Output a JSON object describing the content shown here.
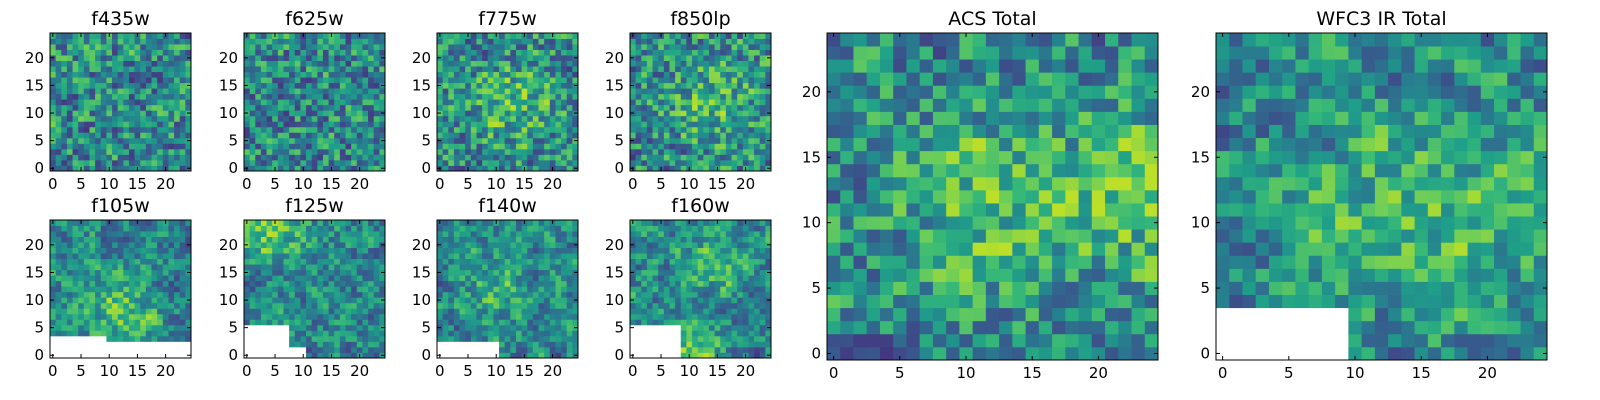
{
  "chart_data": [
    {
      "type": "heatmap",
      "title": "f435w",
      "xlim": [
        -0.5,
        24.5
      ],
      "ylim": [
        -0.5,
        24.5
      ],
      "xticks": [
        "0",
        "5",
        "10",
        "15",
        "20"
      ],
      "yticks": [
        "0",
        "5",
        "10",
        "15",
        "20"
      ],
      "mask": [],
      "seed": 11,
      "bias": [],
      "smooth": 0.8
    },
    {
      "type": "heatmap",
      "title": "f625w",
      "xlim": [
        -0.5,
        24.5
      ],
      "ylim": [
        -0.5,
        24.5
      ],
      "xticks": [
        "0",
        "5",
        "10",
        "15",
        "20"
      ],
      "yticks": [
        "0",
        "5",
        "10",
        "15",
        "20"
      ],
      "mask": [],
      "seed": 23,
      "bias": [],
      "smooth": 0.8
    },
    {
      "type": "heatmap",
      "title": "f775w",
      "xlim": [
        -0.5,
        24.5
      ],
      "ylim": [
        -0.5,
        24.5
      ],
      "xticks": [
        "0",
        "5",
        "10",
        "15",
        "20"
      ],
      "yticks": [
        "0",
        "5",
        "10",
        "15",
        "20"
      ],
      "mask": [],
      "seed": 37,
      "bias": [
        [
          13,
          12,
          5,
          0.3
        ]
      ],
      "smooth": 0.8
    },
    {
      "type": "heatmap",
      "title": "f850lp",
      "xlim": [
        -0.5,
        24.5
      ],
      "ylim": [
        -0.5,
        24.5
      ],
      "xticks": [
        "0",
        "5",
        "10",
        "15",
        "20"
      ],
      "yticks": [
        "0",
        "5",
        "10",
        "15",
        "20"
      ],
      "mask": [],
      "seed": 41,
      "bias": [
        [
          14,
          12,
          5,
          0.3
        ]
      ],
      "smooth": 0.8
    },
    {
      "type": "heatmap",
      "title": "f105w",
      "xlim": [
        -0.5,
        24.5
      ],
      "ylim": [
        -0.5,
        24.5
      ],
      "xticks": [
        "0",
        "5",
        "10",
        "15",
        "20"
      ],
      "yticks": [
        "0",
        "5",
        "10",
        "15",
        "20"
      ],
      "mask": [
        [
          0,
          3,
          0,
          9
        ],
        [
          0,
          2,
          10,
          24
        ]
      ],
      "seed": 53,
      "bias": [
        [
          12,
          8,
          4,
          0.35
        ]
      ],
      "smooth": 0.55
    },
    {
      "type": "heatmap",
      "title": "f125w",
      "xlim": [
        -0.5,
        24.5
      ],
      "ylim": [
        -0.5,
        24.5
      ],
      "xticks": [
        "0",
        "5",
        "10",
        "15",
        "20"
      ],
      "yticks": [
        "0",
        "5",
        "10",
        "15",
        "20"
      ],
      "mask": [
        [
          0,
          5,
          0,
          7
        ],
        [
          0,
          1,
          8,
          10
        ]
      ],
      "seed": 67,
      "bias": [
        [
          4,
          22,
          4,
          0.4
        ]
      ],
      "smooth": 0.55
    },
    {
      "type": "heatmap",
      "title": "f140w",
      "xlim": [
        -0.5,
        24.5
      ],
      "ylim": [
        -0.5,
        24.5
      ],
      "xticks": [
        "0",
        "5",
        "10",
        "15",
        "20"
      ],
      "yticks": [
        "0",
        "5",
        "10",
        "15",
        "20"
      ],
      "mask": [
        [
          0,
          2,
          0,
          10
        ]
      ],
      "seed": 79,
      "bias": [
        [
          10,
          12,
          4,
          0.25
        ]
      ],
      "smooth": 0.55
    },
    {
      "type": "heatmap",
      "title": "f160w",
      "xlim": [
        -0.5,
        24.5
      ],
      "ylim": [
        -0.5,
        24.5
      ],
      "xticks": [
        "0",
        "5",
        "10",
        "15",
        "20"
      ],
      "yticks": [
        "0",
        "5",
        "10",
        "15",
        "20"
      ],
      "mask": [
        [
          0,
          5,
          0,
          8
        ],
        [
          5,
          5,
          0,
          4
        ]
      ],
      "seed": 83,
      "bias": [
        [
          14,
          16,
          4,
          0.3
        ],
        [
          11,
          1,
          3,
          0.4
        ]
      ],
      "smooth": 0.55
    },
    {
      "type": "heatmap",
      "title": "ACS Total",
      "xlim": [
        -0.5,
        24.5
      ],
      "ylim": [
        -0.5,
        24.5
      ],
      "xticks": [
        "0",
        "5",
        "10",
        "15",
        "20"
      ],
      "yticks": [
        "0",
        "5",
        "10",
        "15",
        "20"
      ],
      "mask": [],
      "seed": 97,
      "bias": [
        [
          12,
          12,
          5,
          0.3
        ],
        [
          24,
          12,
          4,
          0.35
        ]
      ],
      "smooth": 0.7
    },
    {
      "type": "heatmap",
      "title": "WFC3 IR Total",
      "xlim": [
        -0.5,
        24.5
      ],
      "ylim": [
        -0.5,
        24.5
      ],
      "xticks": [
        "0",
        "5",
        "10",
        "15",
        "20"
      ],
      "yticks": [
        "0",
        "5",
        "10",
        "15",
        "20"
      ],
      "mask": [
        [
          0,
          3,
          0,
          9
        ]
      ],
      "seed": 101,
      "bias": [
        [
          14,
          11,
          5,
          0.35
        ],
        [
          24,
          11,
          3,
          0.35
        ]
      ],
      "smooth": 0.6
    }
  ],
  "colormap": [
    "#440154",
    "#482878",
    "#3e4a89",
    "#31688e",
    "#26828e",
    "#1f9e89",
    "#35b779",
    "#6ece58",
    "#b5de2b",
    "#fde725"
  ]
}
